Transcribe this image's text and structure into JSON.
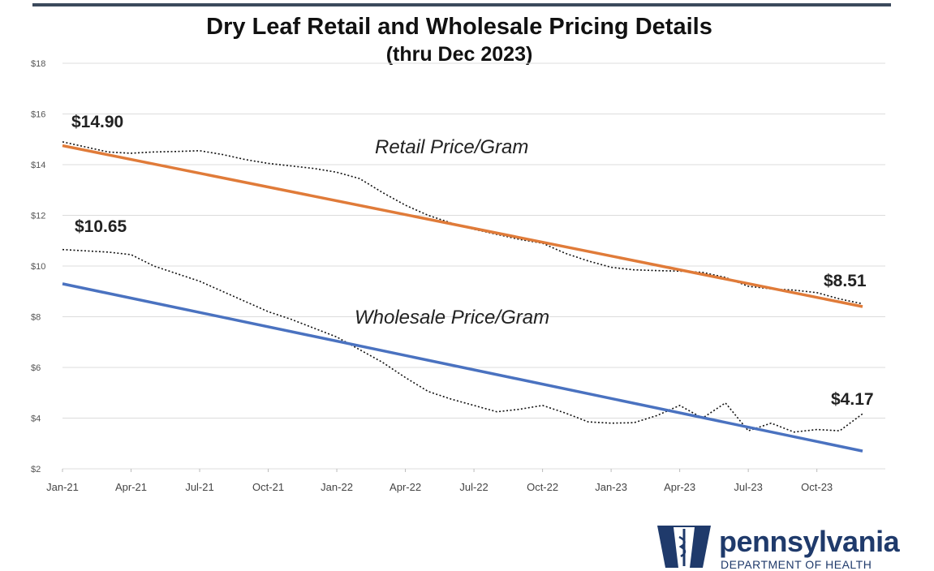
{
  "chart_data": {
    "type": "line",
    "title": "Dry Leaf Retail and Wholesale Pricing Details",
    "subtitle": "(thru Dec 2023)",
    "xlabel": "",
    "ylabel": "",
    "ylim": [
      2,
      18
    ],
    "y_ticks": [
      2,
      4,
      6,
      8,
      10,
      12,
      14,
      16,
      18
    ],
    "y_tick_labels": [
      "$2",
      "$4",
      "$6",
      "$8",
      "$10",
      "$12",
      "$14",
      "$16",
      "$18"
    ],
    "x_tick_labels": [
      "Jan-21",
      "Apr-21",
      "Jul-21",
      "Oct-21",
      "Jan-22",
      "Apr-22",
      "Jul-22",
      "Oct-22",
      "Jan-23",
      "Apr-23",
      "Jul-23",
      "Oct-23"
    ],
    "x_tick_indices": [
      0,
      3,
      6,
      9,
      12,
      15,
      18,
      21,
      24,
      27,
      30,
      33
    ],
    "months": 36,
    "grid": true,
    "series": [
      {
        "name": "Retail Price/Gram",
        "style": "dotted",
        "color": "#111111",
        "values": [
          14.9,
          14.7,
          14.5,
          14.45,
          14.5,
          14.52,
          14.55,
          14.4,
          14.2,
          14.05,
          13.95,
          13.85,
          13.7,
          13.45,
          12.9,
          12.4,
          12.0,
          11.7,
          11.45,
          11.25,
          11.05,
          10.9,
          10.5,
          10.2,
          9.95,
          9.85,
          9.82,
          9.8,
          9.75,
          9.55,
          9.2,
          9.1,
          9.05,
          8.95,
          8.7,
          8.51
        ]
      },
      {
        "name": "Wholesale Price/Gram",
        "style": "dotted",
        "color": "#111111",
        "values": [
          10.65,
          10.6,
          10.55,
          10.45,
          10.0,
          9.7,
          9.4,
          9.0,
          8.6,
          8.2,
          7.9,
          7.55,
          7.2,
          6.7,
          6.2,
          5.6,
          5.05,
          4.75,
          4.5,
          4.25,
          4.35,
          4.5,
          4.2,
          3.85,
          3.8,
          3.82,
          4.1,
          4.5,
          4.0,
          4.6,
          3.5,
          3.8,
          3.45,
          3.55,
          3.5,
          4.17
        ]
      },
      {
        "name": "Retail trend",
        "style": "solid",
        "color": "#E07B39",
        "values_start_end": [
          14.75,
          8.4
        ]
      },
      {
        "name": "Wholesale trend",
        "style": "solid",
        "color": "#4A72C0",
        "values_start_end": [
          9.3,
          2.7
        ]
      }
    ],
    "annotations": [
      {
        "text": "Retail Price/Gram",
        "style": "italic"
      },
      {
        "text": "Wholesale Price/Gram",
        "style": "italic"
      },
      {
        "text": "$14.90",
        "series": "Retail Price/Gram",
        "at": "start"
      },
      {
        "text": "$10.65",
        "series": "Wholesale Price/Gram",
        "at": "start"
      },
      {
        "text": "$8.51",
        "series": "Retail Price/Gram",
        "at": "end"
      },
      {
        "text": "$4.17",
        "series": "Wholesale Price/Gram",
        "at": "end"
      }
    ]
  },
  "logo": {
    "name": "pennsylvania",
    "subtitle": "DEPARTMENT OF HEALTH",
    "color": "#1f3a6b"
  }
}
